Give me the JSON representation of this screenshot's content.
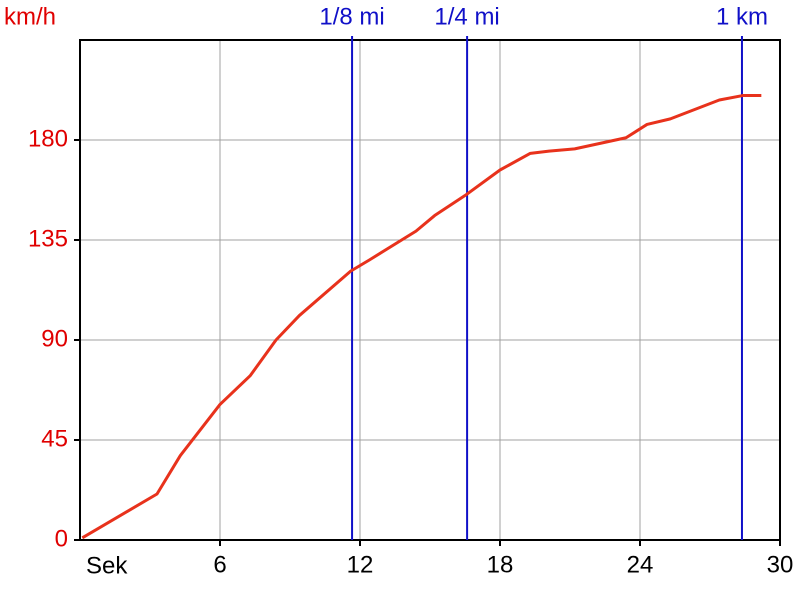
{
  "chart_data": {
    "type": "line",
    "x_label": "Sek",
    "y_label": "km/h",
    "x": [
      0.1,
      3.3,
      4.3,
      6.0,
      7.3,
      8.4,
      9.4,
      11.6,
      12.4,
      14.4,
      15.2,
      16.5,
      18.0,
      19.3,
      20.1,
      21.2,
      23.4,
      24.3,
      25.3,
      27.4,
      28.4,
      29.2
    ],
    "series": [
      {
        "color": "#e8321c",
        "values": [
          1,
          20.7,
          38,
          61,
          74,
          90,
          101,
          121,
          126,
          139,
          146,
          155,
          166.5,
          174,
          175,
          176,
          181,
          187,
          189.5,
          198,
          200,
          200
        ]
      }
    ],
    "xlim": [
      0,
      30
    ],
    "xticks": [
      6,
      12,
      18,
      24,
      30
    ],
    "ylim": [
      0,
      225
    ],
    "yticks": [
      0,
      45,
      90,
      135,
      180
    ],
    "grid": true,
    "markers": [
      {
        "label": "1/8 mi",
        "x": 11.66,
        "color": "#1010c8"
      },
      {
        "label": "1/4 mi",
        "x": 16.59,
        "color": "#1010c8"
      },
      {
        "label": "1 km",
        "x": 28.37,
        "color": "#1010c8"
      }
    ],
    "ytick_color": "#e00000"
  }
}
